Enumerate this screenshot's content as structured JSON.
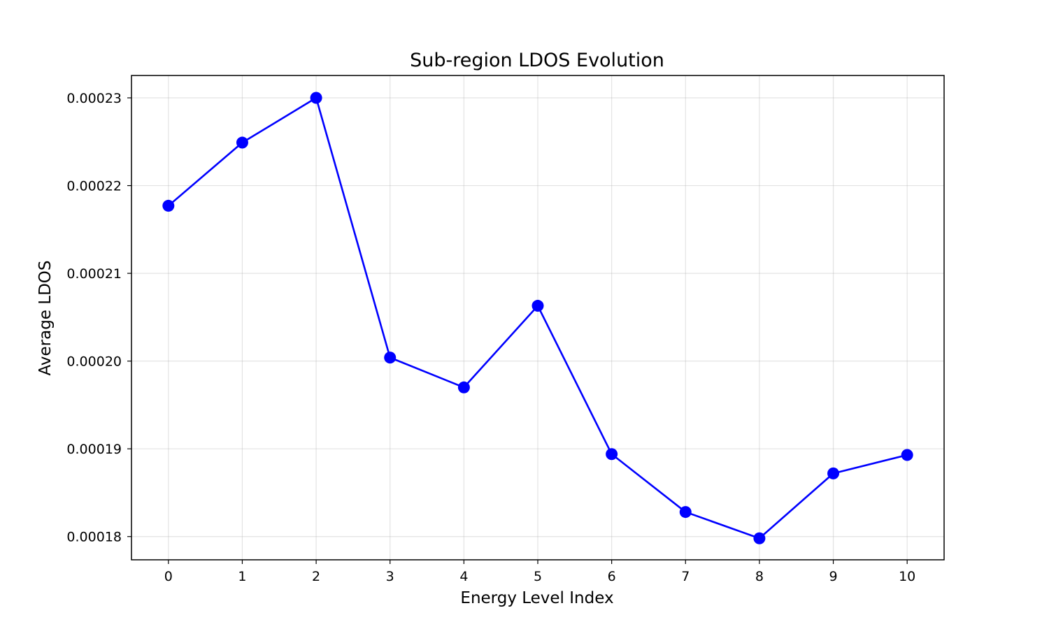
{
  "chart_data": {
    "type": "line",
    "title": "Sub-region LDOS Evolution",
    "xlabel": "Energy Level Index",
    "ylabel": "Average LDOS",
    "x": [
      0,
      1,
      2,
      3,
      4,
      5,
      6,
      7,
      8,
      9,
      10
    ],
    "series": [
      {
        "values": [
          0.0002177,
          0.0002249,
          0.00023,
          0.0002004,
          0.000197,
          0.0002063,
          0.0001894,
          0.0001828,
          0.0001798,
          0.0001872,
          0.0001893
        ],
        "color": "#0000ff",
        "marker": "circle"
      }
    ],
    "xticks": [
      "0",
      "1",
      "2",
      "3",
      "4",
      "5",
      "6",
      "7",
      "8",
      "9",
      "10"
    ],
    "yticks": [
      0.00018,
      0.00019,
      0.0002,
      0.00021,
      0.00022,
      0.00023
    ],
    "ytick_labels": [
      "0.00018",
      "0.00019",
      "0.00020",
      "0.00021",
      "0.00022",
      "0.00023"
    ],
    "xlim": [
      -0.5,
      10.5
    ],
    "ylim": [
      0.00017735,
      0.00023255
    ],
    "grid": true,
    "legend": null
  }
}
